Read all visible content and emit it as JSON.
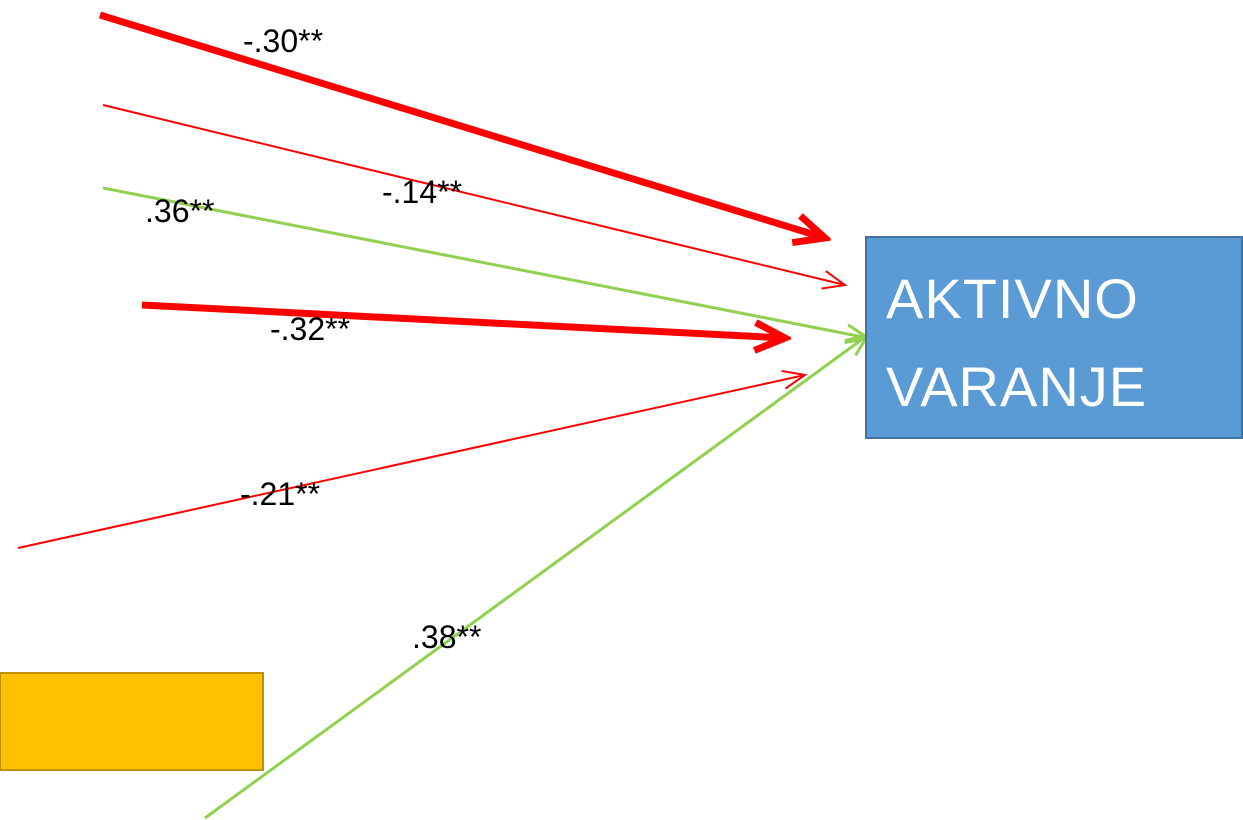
{
  "node": {
    "label_lines": [
      "AKTIVNO",
      "VARANJE"
    ]
  },
  "edges": [
    {
      "label": "-.30**"
    },
    {
      "label": "-.14**"
    },
    {
      "label": ".36**"
    },
    {
      "label": "-.32**"
    },
    {
      "label": "-.21**"
    },
    {
      "label": ".38**"
    }
  ]
}
